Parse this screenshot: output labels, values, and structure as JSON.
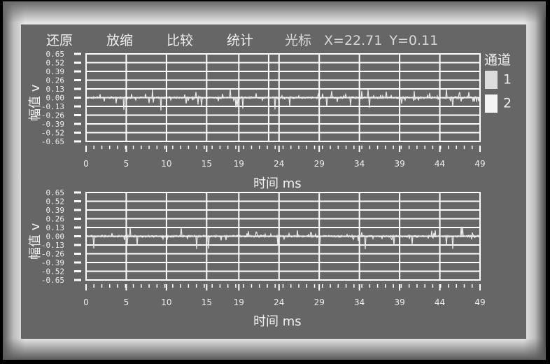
{
  "menu": [
    {
      "label": "还原"
    },
    {
      "label": "放缩"
    },
    {
      "label": "比较"
    },
    {
      "label": "统计"
    }
  ],
  "cursor": {
    "label": "光标",
    "x_text": "X=22.71",
    "y_text": "Y=0.11",
    "x": 22.71,
    "y": 0.11
  },
  "legend": {
    "title": "通道",
    "items": [
      {
        "label": "1",
        "color": "#dcdcdc"
      },
      {
        "label": "2",
        "color": "#f4f4f4"
      }
    ]
  },
  "colors": {
    "panel": "#666666",
    "grid": "#ffffff",
    "trace": "#e8e8e8"
  },
  "chart_data": [
    {
      "type": "line",
      "ylabel": "幅值 v",
      "xlabel": "时间 ms",
      "ylim": [
        -0.65,
        0.65
      ],
      "xlim": [
        0,
        49
      ],
      "yticks": [
        "0.65",
        "0.52",
        "0.39",
        "0.26",
        "0.13",
        "0.00",
        "-0.13",
        "-0.26",
        "-0.39",
        "-0.52",
        "-0.65"
      ],
      "xticks": [
        "0",
        "5",
        "10",
        "15",
        "19",
        "24",
        "29",
        "34",
        "39",
        "44",
        "49"
      ],
      "grid": true,
      "series_seed": 7
    },
    {
      "type": "line",
      "ylabel": "幅值 v",
      "xlabel": "时间 ms",
      "ylim": [
        -0.65,
        0.65
      ],
      "xlim": [
        0,
        49
      ],
      "yticks": [
        "0.65",
        "0.52",
        "0.39",
        "0.26",
        "0.13",
        "0.00",
        "-0.13",
        "-0.26",
        "-0.39",
        "-0.52",
        "-0.65"
      ],
      "xticks": [
        "0",
        "5",
        "10",
        "15",
        "19",
        "24",
        "29",
        "34",
        "39",
        "44",
        "49"
      ],
      "grid": true,
      "series_seed": 19
    }
  ]
}
